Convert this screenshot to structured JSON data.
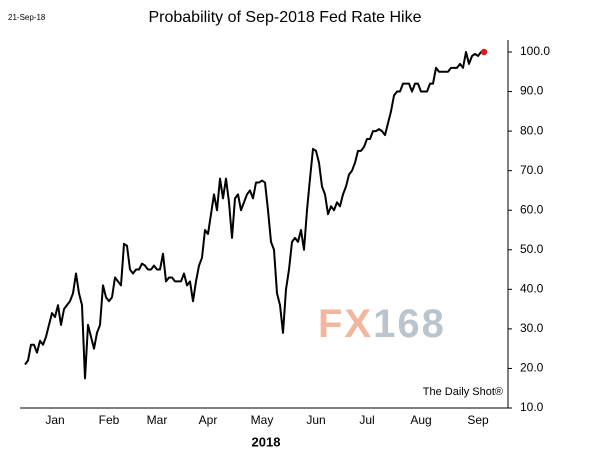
{
  "chart_data": {
    "type": "line",
    "title": "Probability of Sep-2018 Fed Rate Hike",
    "date_stamp": "21-Sep-18",
    "x_label": "2018",
    "source": "The Daily Shot®",
    "watermark": [
      "FX",
      "168"
    ],
    "categories": [
      null,
      null,
      null,
      null,
      null,
      null,
      null,
      null,
      null,
      null,
      "Jan",
      null,
      null,
      null,
      null,
      null,
      null,
      null,
      null,
      null,
      null,
      null,
      null,
      null,
      null,
      null,
      null,
      null,
      "Feb",
      null,
      null,
      null,
      null,
      null,
      null,
      null,
      null,
      null,
      null,
      null,
      null,
      null,
      null,
      null,
      "Mar",
      null,
      null,
      null,
      null,
      null,
      null,
      null,
      null,
      null,
      null,
      null,
      null,
      null,
      null,
      null,
      null,
      "Apr",
      null,
      null,
      null,
      null,
      null,
      null,
      null,
      null,
      null,
      null,
      null,
      null,
      null,
      null,
      null,
      null,
      null,
      "May",
      null,
      null,
      null,
      null,
      null,
      null,
      null,
      null,
      null,
      null,
      null,
      null,
      null,
      null,
      null,
      null,
      null,
      "Jun",
      null,
      null,
      null,
      null,
      null,
      null,
      null,
      null,
      null,
      null,
      null,
      null,
      null,
      null,
      null,
      null,
      "Jul",
      null,
      null,
      null,
      null,
      null,
      null,
      null,
      null,
      null,
      null,
      null,
      null,
      null,
      null,
      null,
      null,
      null,
      "Aug",
      null,
      null,
      null,
      null,
      null,
      null,
      null,
      null,
      null,
      null,
      null,
      null,
      null,
      null,
      null,
      null,
      null,
      null,
      "Sep",
      null,
      null
    ],
    "series": [
      {
        "color": "#000000",
        "last_point_color": "#e8141c",
        "values": [
          21,
          22,
          26,
          26,
          24,
          27,
          26,
          28,
          31,
          34,
          33,
          36,
          31,
          35,
          36,
          37,
          39,
          44,
          39,
          36,
          17.5,
          31,
          28,
          25,
          29,
          31,
          41,
          38,
          37,
          38,
          43,
          42,
          41,
          51.5,
          51,
          45,
          44,
          45,
          45,
          46.5,
          46,
          45,
          45,
          46,
          45,
          45,
          49,
          42,
          43,
          43,
          42,
          42,
          42,
          44,
          41,
          42,
          37,
          42,
          46,
          48,
          55,
          54,
          59,
          64,
          60,
          68,
          63,
          68,
          62,
          53,
          63,
          64,
          60,
          62,
          64,
          65,
          63,
          67,
          67,
          67.5,
          67,
          60,
          52,
          50,
          39,
          36,
          29,
          40,
          45,
          52,
          53,
          52,
          55,
          50,
          60,
          68,
          75.5,
          75,
          72,
          66,
          64,
          59,
          61,
          60,
          62,
          61,
          64,
          66,
          69,
          70,
          72,
          75,
          75,
          76,
          78,
          78,
          80,
          80,
          80.5,
          80,
          79,
          82,
          85,
          89,
          90,
          90,
          92,
          92,
          92,
          90,
          92,
          92,
          90,
          90,
          90,
          92,
          92,
          96,
          95,
          95,
          95,
          95,
          96,
          96,
          96,
          97,
          96,
          100,
          97,
          99,
          99.5,
          99,
          100,
          100
        ]
      }
    ],
    "ylim": [
      10,
      100
    ],
    "yticks": [
      {
        "value": 10,
        "label": "10.0"
      },
      {
        "value": 20,
        "label": "20.0"
      },
      {
        "value": 30,
        "label": "30.0"
      },
      {
        "value": 40,
        "label": "40.0"
      },
      {
        "value": 50,
        "label": "50.0"
      },
      {
        "value": 60,
        "label": "60.0"
      },
      {
        "value": 70,
        "label": "70.0"
      },
      {
        "value": 80,
        "label": "80.0"
      },
      {
        "value": 90,
        "label": "90.0"
      },
      {
        "value": 100,
        "label": "100.0"
      }
    ],
    "y_axis_side": "right",
    "grid": false
  }
}
